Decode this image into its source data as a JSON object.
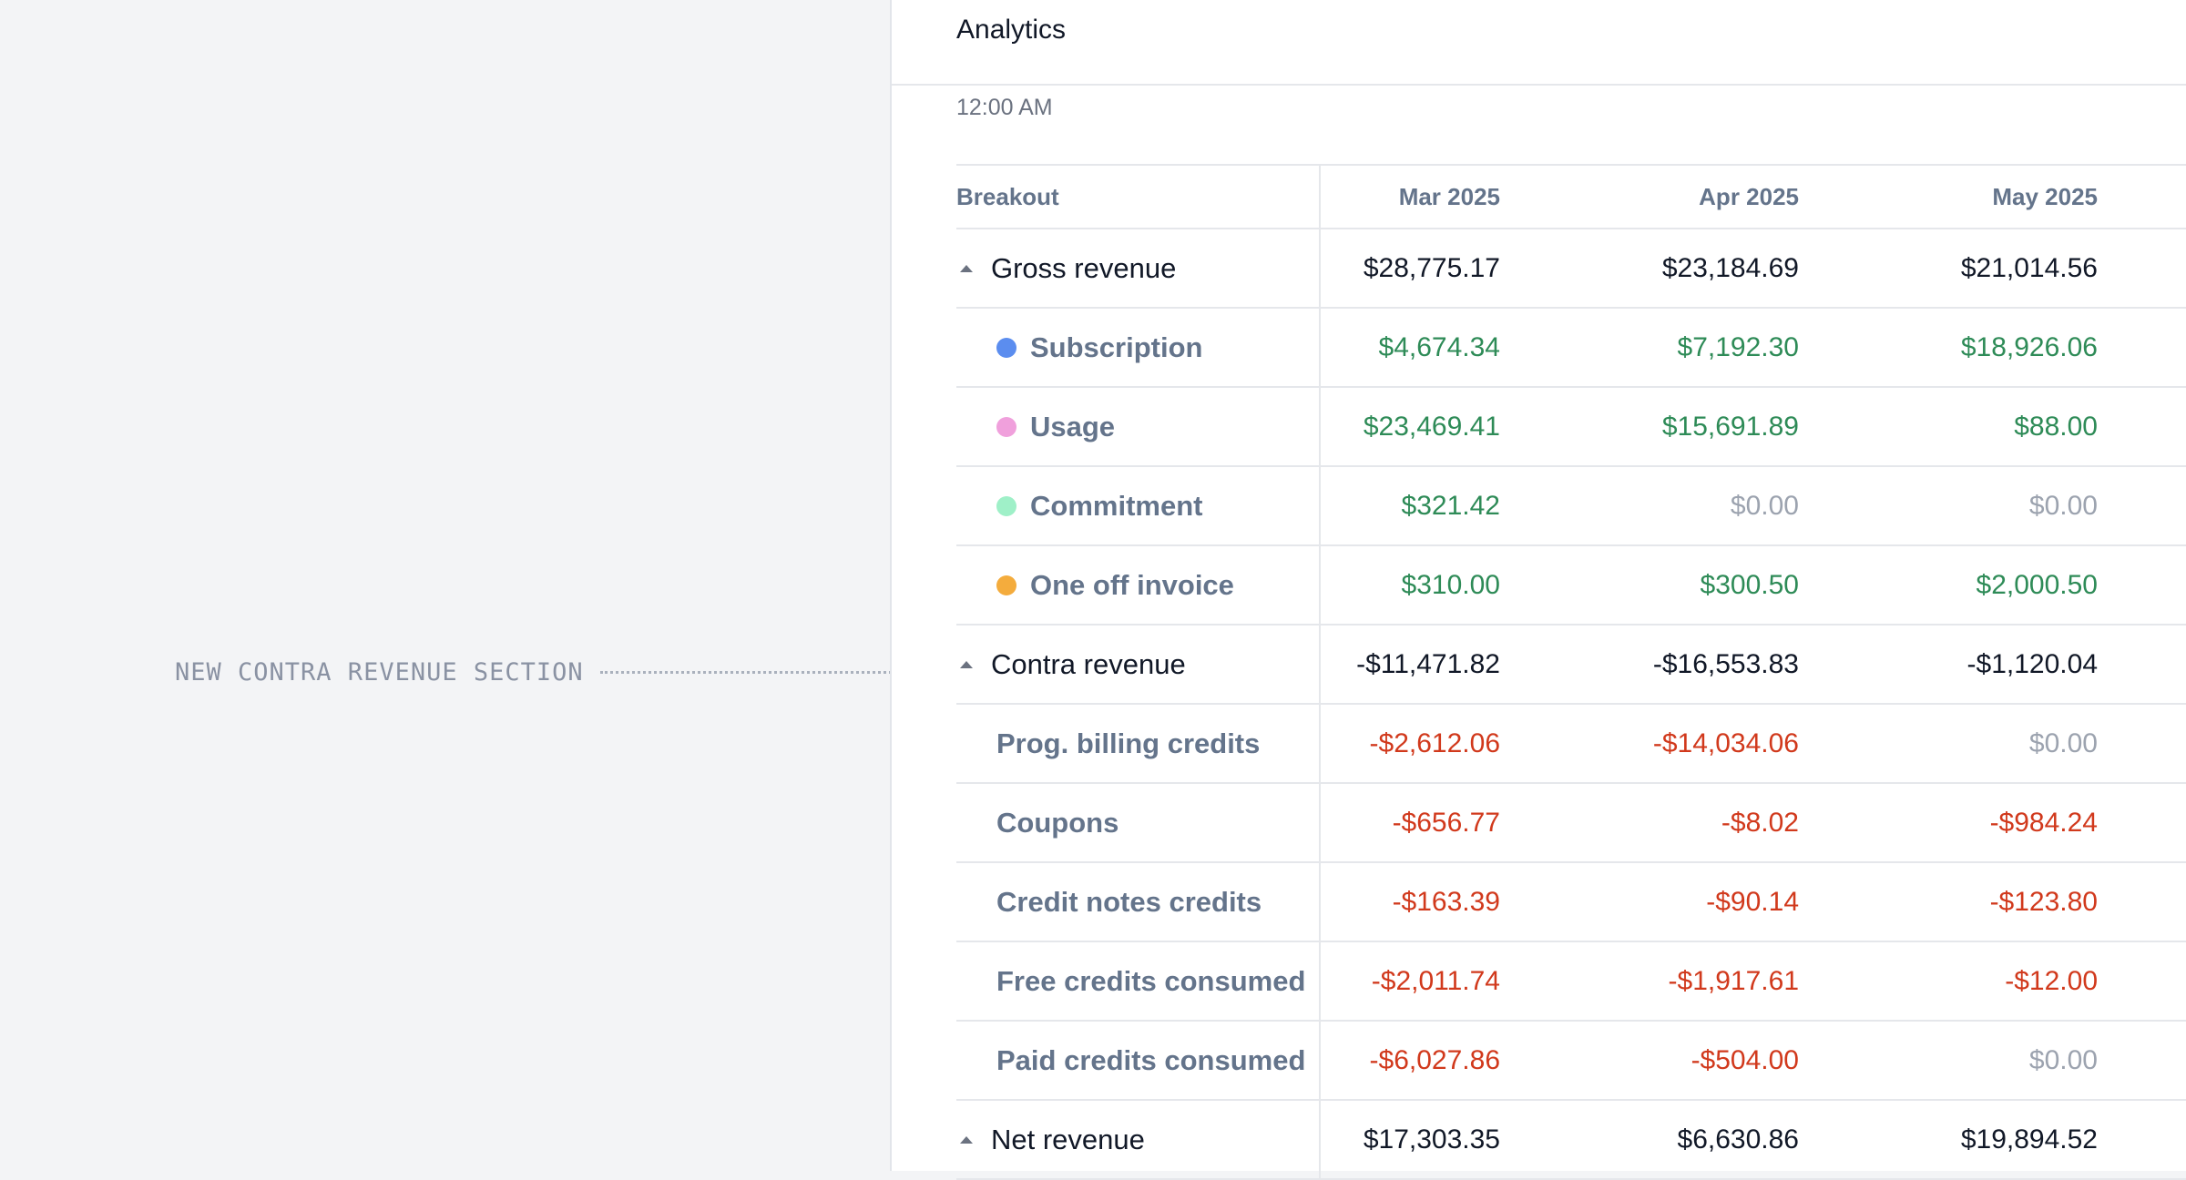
{
  "annotation": {
    "text": "NEW CONTRA REVENUE SECTION"
  },
  "header": {
    "title": "Analytics"
  },
  "time_label": "12:00 AM",
  "table": {
    "columns": [
      "Breakout",
      "Mar 2025",
      "Apr 2025",
      "May 2025"
    ],
    "rows": [
      {
        "label": "Gross revenue",
        "kind": "section",
        "values": [
          "$28,775.17",
          "$23,184.69",
          "$21,014.56"
        ],
        "tones": [
          "neutral",
          "neutral",
          "neutral"
        ]
      },
      {
        "label": "Subscription",
        "kind": "item",
        "dot": "#5b8def",
        "values": [
          "$4,674.34",
          "$7,192.30",
          "$18,926.06"
        ],
        "tones": [
          "pos",
          "pos",
          "pos"
        ]
      },
      {
        "label": "Usage",
        "kind": "item",
        "dot": "#f0a0dc",
        "values": [
          "$23,469.41",
          "$15,691.89",
          "$88.00"
        ],
        "tones": [
          "pos",
          "pos",
          "pos"
        ]
      },
      {
        "label": "Commitment",
        "kind": "item",
        "dot": "#9ff0c8",
        "values": [
          "$321.42",
          "$0.00",
          "$0.00"
        ],
        "tones": [
          "pos",
          "zero",
          "zero"
        ]
      },
      {
        "label": "One off invoice",
        "kind": "item",
        "dot": "#f4ac3d",
        "values": [
          "$310.00",
          "$300.50",
          "$2,000.50"
        ],
        "tones": [
          "pos",
          "pos",
          "pos"
        ]
      },
      {
        "label": "Contra revenue",
        "kind": "section",
        "values": [
          "-$11,471.82",
          "-$16,553.83",
          "-$1,120.04"
        ],
        "tones": [
          "neutral",
          "neutral",
          "neutral"
        ]
      },
      {
        "label": "Prog. billing credits",
        "kind": "subitem",
        "values": [
          "-$2,612.06",
          "-$14,034.06",
          "$0.00"
        ],
        "tones": [
          "neg",
          "neg",
          "zero"
        ]
      },
      {
        "label": "Coupons",
        "kind": "subitem",
        "values": [
          "-$656.77",
          "-$8.02",
          "-$984.24"
        ],
        "tones": [
          "neg",
          "neg",
          "neg"
        ]
      },
      {
        "label": "Credit notes credits",
        "kind": "subitem",
        "values": [
          "-$163.39",
          "-$90.14",
          "-$123.80"
        ],
        "tones": [
          "neg",
          "neg",
          "neg"
        ]
      },
      {
        "label": "Free credits consumed",
        "kind": "subitem",
        "values": [
          "-$2,011.74",
          "-$1,917.61",
          "-$12.00"
        ],
        "tones": [
          "neg",
          "neg",
          "neg"
        ]
      },
      {
        "label": "Paid credits consumed",
        "kind": "subitem",
        "values": [
          "-$6,027.86",
          "-$504.00",
          "$0.00"
        ],
        "tones": [
          "neg",
          "neg",
          "zero"
        ]
      },
      {
        "label": "Net revenue",
        "kind": "section",
        "values": [
          "$17,303.35",
          "$6,630.86",
          "$19,894.52"
        ],
        "tones": [
          "neutral",
          "neutral",
          "neutral"
        ]
      }
    ]
  }
}
